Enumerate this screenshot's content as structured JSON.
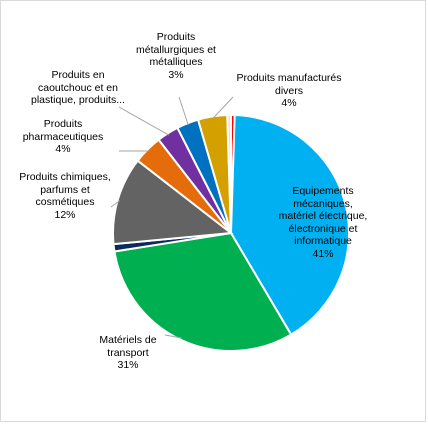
{
  "chart_data": {
    "type": "pie",
    "title": "",
    "slices": [
      {
        "label": "",
        "value": 0.5,
        "percent": "",
        "color": "#ff0000"
      },
      {
        "label": "Equipements mécaniques, matériel électrique, électronique et informatique",
        "value": 41,
        "percent": "41%",
        "color": "#00b0f0"
      },
      {
        "label": "Matériels de transport",
        "value": 31,
        "percent": "31%",
        "color": "#00b050"
      },
      {
        "label": "",
        "value": 1,
        "percent": "",
        "color": "#0d2a5c"
      },
      {
        "label": "Produits chimiques, parfums et cosmétiques",
        "value": 12,
        "percent": "12%",
        "color": "#636363"
      },
      {
        "label": "Produits pharmaceutiques",
        "value": 4,
        "percent": "4%",
        "color": "#e46c0a"
      },
      {
        "label": "Produits en caoutchouc et en plastique, produits...",
        "value": 3,
        "percent": "",
        "color": "#7030a0"
      },
      {
        "label": "Produits métallurgiques et métalliques",
        "value": 3,
        "percent": "3%",
        "color": "#0070c0"
      },
      {
        "label": "Produits manufacturés divers",
        "value": 4,
        "percent": "4%",
        "color": "#d4a000"
      },
      {
        "label": "",
        "value": 0.5,
        "percent": "",
        "color": "#e2e2e2"
      }
    ]
  },
  "labels": {
    "equip": {
      "lines": [
        "Equipements",
        "mécaniques,",
        "matériel électrique,",
        "électronique et",
        "informatique"
      ],
      "pct": "41%"
    },
    "transport": {
      "lines": [
        "Matériels de",
        "transport"
      ],
      "pct": "31%"
    },
    "chimiques": {
      "lines": [
        "Produits chimiques,",
        "parfums et",
        "cosmétiques"
      ],
      "pct": "12%"
    },
    "pharma": {
      "lines": [
        "Produits",
        "pharmaceutiques"
      ],
      "pct": "4%"
    },
    "caoutchouc": {
      "lines": [
        "Produits en",
        "caoutchouc et en",
        "plastique, produits..."
      ],
      "pct": ""
    },
    "metal": {
      "lines": [
        "Produits",
        "métallurgiques et",
        "métalliques"
      ],
      "pct": "3%"
    },
    "manuf": {
      "lines": [
        "Produits manufacturés",
        "divers"
      ],
      "pct": "4%"
    }
  }
}
